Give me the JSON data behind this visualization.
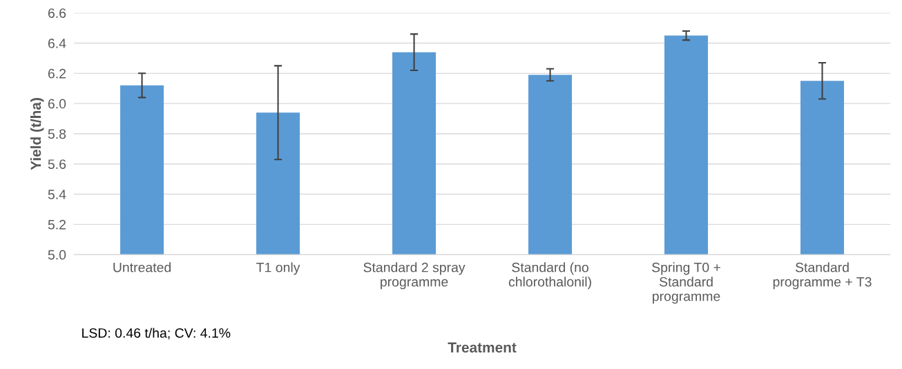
{
  "chart_data": {
    "type": "bar",
    "xlabel": "Treatment",
    "ylabel": "Yield (t/ha)",
    "categories": [
      "Untreated",
      "T1 only",
      "Standard 2 spray programme",
      "Standard (no chlorothalonil)",
      "Spring T0 + Standard programme",
      "Standard programme + T3"
    ],
    "values": [
      6.12,
      5.94,
      6.34,
      6.19,
      6.45,
      6.15
    ],
    "errors": [
      0.08,
      0.31,
      0.12,
      0.04,
      0.03,
      0.12
    ],
    "color": "#5b9bd5",
    "ylim": [
      5.0,
      6.6
    ],
    "yticks": [
      {
        "value": 5.0,
        "label": "5.0"
      },
      {
        "value": 5.2,
        "label": "5.2"
      },
      {
        "value": 5.4,
        "label": "5.4"
      },
      {
        "value": 5.6,
        "label": "5.6"
      },
      {
        "value": 5.8,
        "label": "5.8"
      },
      {
        "value": 6.0,
        "label": "6.0"
      },
      {
        "value": 6.2,
        "label": "6.2"
      },
      {
        "value": 6.4,
        "label": "6.4"
      },
      {
        "value": 6.6,
        "label": "6.6"
      }
    ],
    "grid": "y",
    "annotations": [
      "LSD: 0.46 t/ha; CV: 4.1%"
    ]
  }
}
